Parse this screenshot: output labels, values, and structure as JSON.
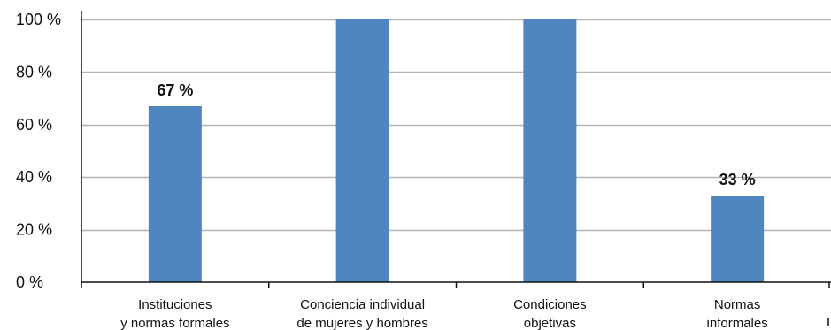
{
  "chart_data": {
    "type": "bar",
    "categories": [
      [
        "Instituciones",
        "y normas formales"
      ],
      [
        "Conciencia individual",
        "de mujeres y hombres"
      ],
      [
        "Condiciones",
        "objetivas"
      ],
      [
        "Normas",
        "informales"
      ]
    ],
    "values": [
      67,
      100,
      100,
      33
    ],
    "data_labels": [
      "67 %",
      "",
      "",
      "33 %"
    ],
    "yticks": [
      0,
      20,
      40,
      60,
      80,
      100
    ],
    "ytick_labels": [
      "0 %",
      "20 %",
      "40 %",
      "60 %",
      "80 %",
      "100 %"
    ],
    "ylim": [
      0,
      100
    ],
    "grid": true,
    "bar_color": "#4f86c0"
  }
}
